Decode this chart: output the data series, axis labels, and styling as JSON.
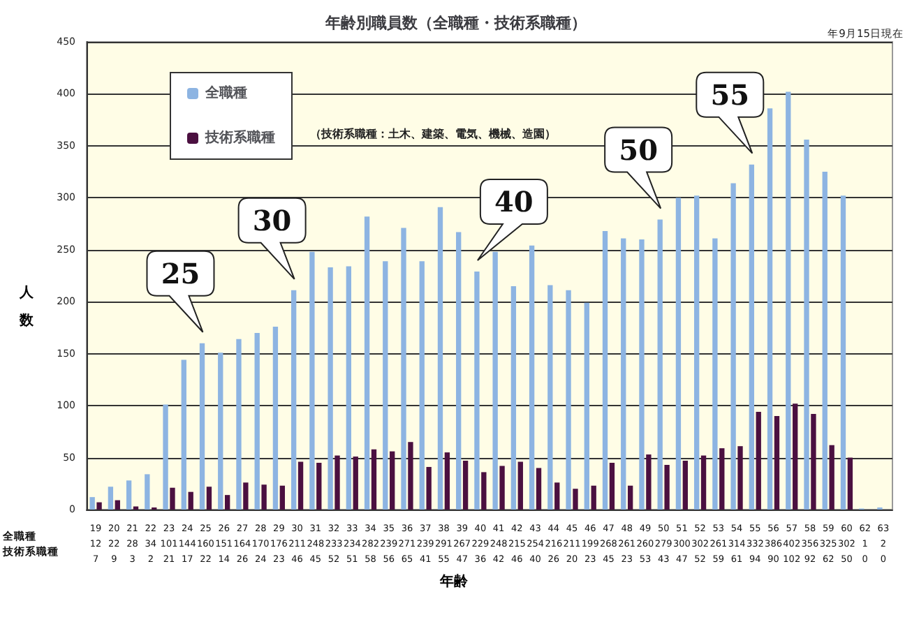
{
  "chart_data": {
    "type": "bar",
    "title": "年齢別職員数（全職種・技術系職種）",
    "xlabel": "年齢",
    "ylabel": "人数",
    "categories": [
      "19",
      "20",
      "21",
      "22",
      "23",
      "24",
      "25",
      "26",
      "27",
      "28",
      "29",
      "30",
      "31",
      "32",
      "33",
      "34",
      "35",
      "36",
      "37",
      "38",
      "39",
      "40",
      "41",
      "42",
      "43",
      "44",
      "45",
      "46",
      "47",
      "48",
      "49",
      "50",
      "51",
      "52",
      "53",
      "54",
      "55",
      "56",
      "57",
      "58",
      "59",
      "60",
      "62",
      "63"
    ],
    "series": [
      {
        "name": "全職種",
        "color": "#8db4e2",
        "values": [
          12,
          22,
          28,
          34,
          101,
          144,
          160,
          151,
          164,
          170,
          176,
          211,
          248,
          233,
          234,
          282,
          239,
          271,
          239,
          291,
          267,
          229,
          248,
          215,
          254,
          216,
          211,
          199,
          268,
          261,
          260,
          279,
          300,
          302,
          261,
          314,
          332,
          386,
          402,
          356,
          325,
          302,
          1,
          2
        ]
      },
      {
        "name": "技術系職種",
        "color": "#4b1040",
        "values": [
          7,
          9,
          3,
          2,
          21,
          17,
          22,
          14,
          26,
          24,
          23,
          46,
          45,
          52,
          51,
          58,
          56,
          65,
          41,
          55,
          47,
          36,
          42,
          46,
          40,
          26,
          20,
          23,
          45,
          23,
          53,
          43,
          47,
          52,
          59,
          61,
          94,
          90,
          102,
          92,
          62,
          50,
          0,
          0
        ]
      }
    ],
    "ylim": [
      0,
      450
    ],
    "yticks": [
      0,
      50,
      100,
      150,
      200,
      250,
      300,
      350,
      400,
      450
    ],
    "grid": "y",
    "legend": "top left",
    "data_labels": true,
    "annotations": [
      "（技術系職種：土木、建築、電気、機械、造園）",
      "年9月15日現在",
      {
        "text": "25",
        "x": "25",
        "y": 160
      },
      {
        "text": "30",
        "x": "30",
        "y": 211
      },
      {
        "text": "40",
        "x": "40",
        "y": 229
      },
      {
        "text": "50",
        "x": "50",
        "y": 279
      },
      {
        "text": "55",
        "x": "55",
        "y": 332
      }
    ]
  }
}
